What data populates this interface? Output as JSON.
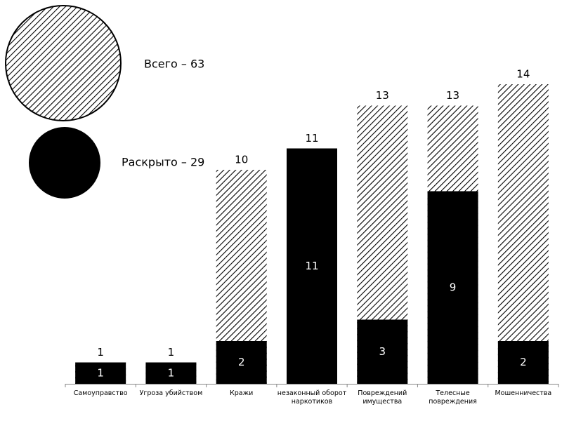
{
  "chart_data": {
    "type": "overlap-bar",
    "categories": [
      "Самоуправство",
      "Угроза убийством",
      "Кражи",
      "незаконный оборот\nнаркотиков",
      "Повреждений\nимущества",
      "Телесные\nповреждения",
      "Мошенничества"
    ],
    "series": [
      {
        "name": "Всего – 63",
        "color": "#000000",
        "pattern": "hatch",
        "values": [
          1,
          1,
          10,
          11,
          13,
          13,
          14
        ]
      },
      {
        "name": "Раскрыто – 29",
        "color": "#000000",
        "pattern": "solid",
        "values": [
          1,
          1,
          2,
          11,
          3,
          9,
          2
        ]
      }
    ],
    "ylim": [
      0,
      14
    ]
  }
}
